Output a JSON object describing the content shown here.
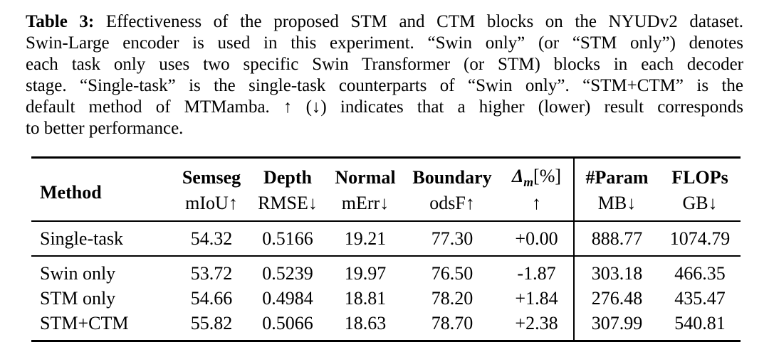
{
  "colors": {
    "text": "#000000",
    "background": "#ffffff"
  },
  "caption": {
    "label": "Table 3:",
    "lines": [
      " Effectiveness of the proposed STM and CTM blocks on the NYUDv2 dataset.",
      "Swin-Large encoder is used in this experiment. “Swin only” (or “STM only”) denotes",
      "each task only uses two specific Swin Transformer (or STM) blocks in each decoder",
      "stage. “Single-task” is the single-task counterparts of “Swin only”. “STM+CTM” is the",
      "default method of MTMamba. ↑ (↓) indicates that a higher (lower) result corresponds",
      "to better performance."
    ]
  },
  "table": {
    "method_header": "Method",
    "columns": [
      {
        "top": "Semseg",
        "bottom": "mIoU↑"
      },
      {
        "top": "Depth",
        "bottom": "RMSE↓"
      },
      {
        "top": "Normal",
        "bottom": "mErr↓"
      },
      {
        "top": "Boundary",
        "bottom": "odsF↑"
      },
      {
        "top": "Δm[%]",
        "bottom": "↑"
      },
      {
        "top": "#Param",
        "bottom": "MB↓"
      },
      {
        "top": "FLOPs",
        "bottom": "GB↓"
      }
    ],
    "delta": {
      "symbol": "Δ",
      "sub": "m",
      "unit": "[%]"
    },
    "rows": [
      {
        "method": "Single-task",
        "values": [
          "54.32",
          "0.5166",
          "19.21",
          "77.30",
          "+0.00",
          "888.77",
          "1074.79"
        ]
      },
      {
        "method": "Swin only",
        "values": [
          "53.72",
          "0.5239",
          "19.97",
          "76.50",
          "-1.87",
          "303.18",
          "466.35"
        ]
      },
      {
        "method": "STM only",
        "values": [
          "54.66",
          "0.4984",
          "18.81",
          "78.20",
          "+1.84",
          "276.48",
          "435.47"
        ]
      },
      {
        "method": "STM+CTM",
        "values": [
          "55.82",
          "0.5066",
          "18.63",
          "78.70",
          "+2.38",
          "307.99",
          "540.81"
        ]
      }
    ]
  }
}
